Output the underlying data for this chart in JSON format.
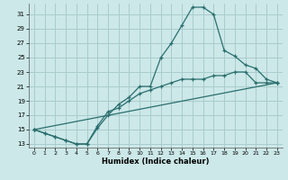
{
  "xlabel": "Humidex (Indice chaleur)",
  "background_color": "#cce8e8",
  "grid_color": "#aacccc",
  "line_color": "#2a6e6e",
  "xlim": [
    -0.5,
    23.5
  ],
  "ylim": [
    12.5,
    32.5
  ],
  "yticks": [
    13,
    15,
    17,
    19,
    21,
    23,
    25,
    27,
    29,
    31
  ],
  "xticks": [
    0,
    1,
    2,
    3,
    4,
    5,
    6,
    7,
    8,
    9,
    10,
    11,
    12,
    13,
    14,
    15,
    16,
    17,
    18,
    19,
    20,
    21,
    22,
    23
  ],
  "line1_x": [
    0,
    1,
    2,
    3,
    4,
    5,
    6,
    7,
    8,
    9,
    10,
    11,
    12,
    13,
    14,
    15,
    16,
    17,
    18,
    19,
    20,
    21,
    22,
    23
  ],
  "line1_y": [
    15,
    14.5,
    14,
    13.5,
    13,
    13,
    15.2,
    17,
    18.5,
    19.5,
    21,
    21,
    25,
    27,
    29.5,
    32,
    32,
    31,
    26,
    25.2,
    24,
    23.5,
    22,
    21.5
  ],
  "line2_x": [
    0,
    1,
    2,
    3,
    4,
    5,
    6,
    7,
    8,
    9,
    10,
    11,
    12,
    13,
    14,
    15,
    16,
    17,
    18,
    19,
    20,
    21,
    22,
    23
  ],
  "line2_y": [
    15,
    14.5,
    14,
    13.5,
    13,
    13,
    15.5,
    17.5,
    18,
    19,
    20,
    20.5,
    21,
    21.5,
    22,
    22,
    22,
    22.5,
    22.5,
    23,
    23,
    21.5,
    21.5,
    21.5
  ],
  "line3_x": [
    0,
    23
  ],
  "line3_y": [
    15,
    21.5
  ]
}
